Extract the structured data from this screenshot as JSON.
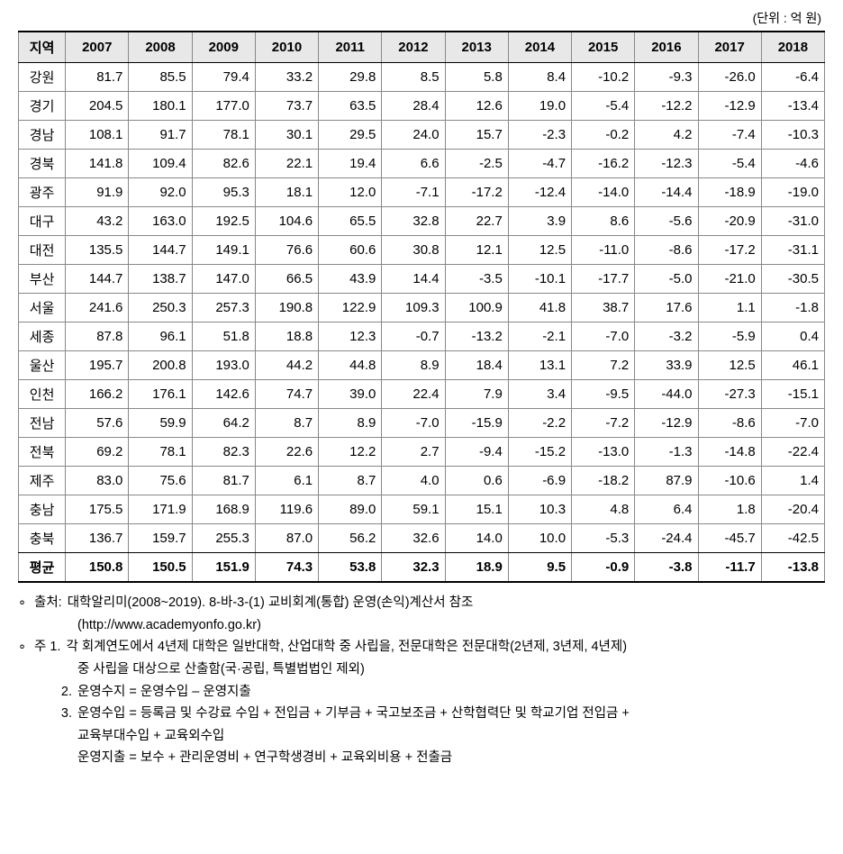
{
  "unit_label": "(단위 : 억 원)",
  "table": {
    "header_region": "지역",
    "years": [
      "2007",
      "2008",
      "2009",
      "2010",
      "2011",
      "2012",
      "2013",
      "2014",
      "2015",
      "2016",
      "2017",
      "2018"
    ],
    "rows": [
      {
        "region": "강원",
        "values": [
          "81.7",
          "85.5",
          "79.4",
          "33.2",
          "29.8",
          "8.5",
          "5.8",
          "8.4",
          "-10.2",
          "-9.3",
          "-26.0",
          "-6.4"
        ]
      },
      {
        "region": "경기",
        "values": [
          "204.5",
          "180.1",
          "177.0",
          "73.7",
          "63.5",
          "28.4",
          "12.6",
          "19.0",
          "-5.4",
          "-12.2",
          "-12.9",
          "-13.4"
        ]
      },
      {
        "region": "경남",
        "values": [
          "108.1",
          "91.7",
          "78.1",
          "30.1",
          "29.5",
          "24.0",
          "15.7",
          "-2.3",
          "-0.2",
          "4.2",
          "-7.4",
          "-10.3"
        ]
      },
      {
        "region": "경북",
        "values": [
          "141.8",
          "109.4",
          "82.6",
          "22.1",
          "19.4",
          "6.6",
          "-2.5",
          "-4.7",
          "-16.2",
          "-12.3",
          "-5.4",
          "-4.6"
        ]
      },
      {
        "region": "광주",
        "values": [
          "91.9",
          "92.0",
          "95.3",
          "18.1",
          "12.0",
          "-7.1",
          "-17.2",
          "-12.4",
          "-14.0",
          "-14.4",
          "-18.9",
          "-19.0"
        ]
      },
      {
        "region": "대구",
        "values": [
          "43.2",
          "163.0",
          "192.5",
          "104.6",
          "65.5",
          "32.8",
          "22.7",
          "3.9",
          "8.6",
          "-5.6",
          "-20.9",
          "-31.0"
        ]
      },
      {
        "region": "대전",
        "values": [
          "135.5",
          "144.7",
          "149.1",
          "76.6",
          "60.6",
          "30.8",
          "12.1",
          "12.5",
          "-11.0",
          "-8.6",
          "-17.2",
          "-31.1"
        ]
      },
      {
        "region": "부산",
        "values": [
          "144.7",
          "138.7",
          "147.0",
          "66.5",
          "43.9",
          "14.4",
          "-3.5",
          "-10.1",
          "-17.7",
          "-5.0",
          "-21.0",
          "-30.5"
        ]
      },
      {
        "region": "서울",
        "values": [
          "241.6",
          "250.3",
          "257.3",
          "190.8",
          "122.9",
          "109.3",
          "100.9",
          "41.8",
          "38.7",
          "17.6",
          "1.1",
          "-1.8"
        ]
      },
      {
        "region": "세종",
        "values": [
          "87.8",
          "96.1",
          "51.8",
          "18.8",
          "12.3",
          "-0.7",
          "-13.2",
          "-2.1",
          "-7.0",
          "-3.2",
          "-5.9",
          "0.4"
        ]
      },
      {
        "region": "울산",
        "values": [
          "195.7",
          "200.8",
          "193.0",
          "44.2",
          "44.8",
          "8.9",
          "18.4",
          "13.1",
          "7.2",
          "33.9",
          "12.5",
          "46.1"
        ]
      },
      {
        "region": "인천",
        "values": [
          "166.2",
          "176.1",
          "142.6",
          "74.7",
          "39.0",
          "22.4",
          "7.9",
          "3.4",
          "-9.5",
          "-44.0",
          "-27.3",
          "-15.1"
        ]
      },
      {
        "region": "전남",
        "values": [
          "57.6",
          "59.9",
          "64.2",
          "8.7",
          "8.9",
          "-7.0",
          "-15.9",
          "-2.2",
          "-7.2",
          "-12.9",
          "-8.6",
          "-7.0"
        ]
      },
      {
        "region": "전북",
        "values": [
          "69.2",
          "78.1",
          "82.3",
          "22.6",
          "12.2",
          "2.7",
          "-9.4",
          "-15.2",
          "-13.0",
          "-1.3",
          "-14.8",
          "-22.4"
        ]
      },
      {
        "region": "제주",
        "values": [
          "83.0",
          "75.6",
          "81.7",
          "6.1",
          "8.7",
          "4.0",
          "0.6",
          "-6.9",
          "-18.2",
          "87.9",
          "-10.6",
          "1.4"
        ]
      },
      {
        "region": "충남",
        "values": [
          "175.5",
          "171.9",
          "168.9",
          "119.6",
          "89.0",
          "59.1",
          "15.1",
          "10.3",
          "4.8",
          "6.4",
          "1.8",
          "-20.4"
        ]
      },
      {
        "region": "충북",
        "values": [
          "136.7",
          "159.7",
          "255.3",
          "87.0",
          "56.2",
          "32.6",
          "14.0",
          "10.0",
          "-5.3",
          "-24.4",
          "-45.7",
          "-42.5"
        ]
      }
    ],
    "avg": {
      "region": "평균",
      "values": [
        "150.8",
        "150.5",
        "151.9",
        "74.3",
        "53.8",
        "32.3",
        "18.9",
        "9.5",
        "-0.9",
        "-3.8",
        "-11.7",
        "-13.8"
      ]
    }
  },
  "notes": {
    "source_label": "출처:",
    "source_text": "대학알리미(2008~2019). 8-바-3-(1) 교비회계(통합) 운영(손익)계산서 참조",
    "source_url": "(http://www.academyonfo.go.kr)",
    "note_label": "주 1.",
    "note1_a": "각 회계연도에서 4년제 대학은 일반대학, 산업대학 중 사립을, 전문대학은 전문대학(2년제, 3년제, 4년제)",
    "note1_b": "중 사립을 대상으로 산출함(국·공립, 특별법법인 제외)",
    "note2_num": "2.",
    "note2": "운영수지 = 운영수입 – 운영지출",
    "note3_num": "3.",
    "note3_a": "운영수입 =  등록금 및 수강료 수입 + 전입금 + 기부금 + 국고보조금 + 산학협력단 및 학교기업 전입금 +",
    "note3_b": "교육부대수입 + 교육외수입",
    "note3_c": "운영지출 =  보수 + 관리운영비 + 연구학생경비 + 교육외비용 + 전출금"
  }
}
